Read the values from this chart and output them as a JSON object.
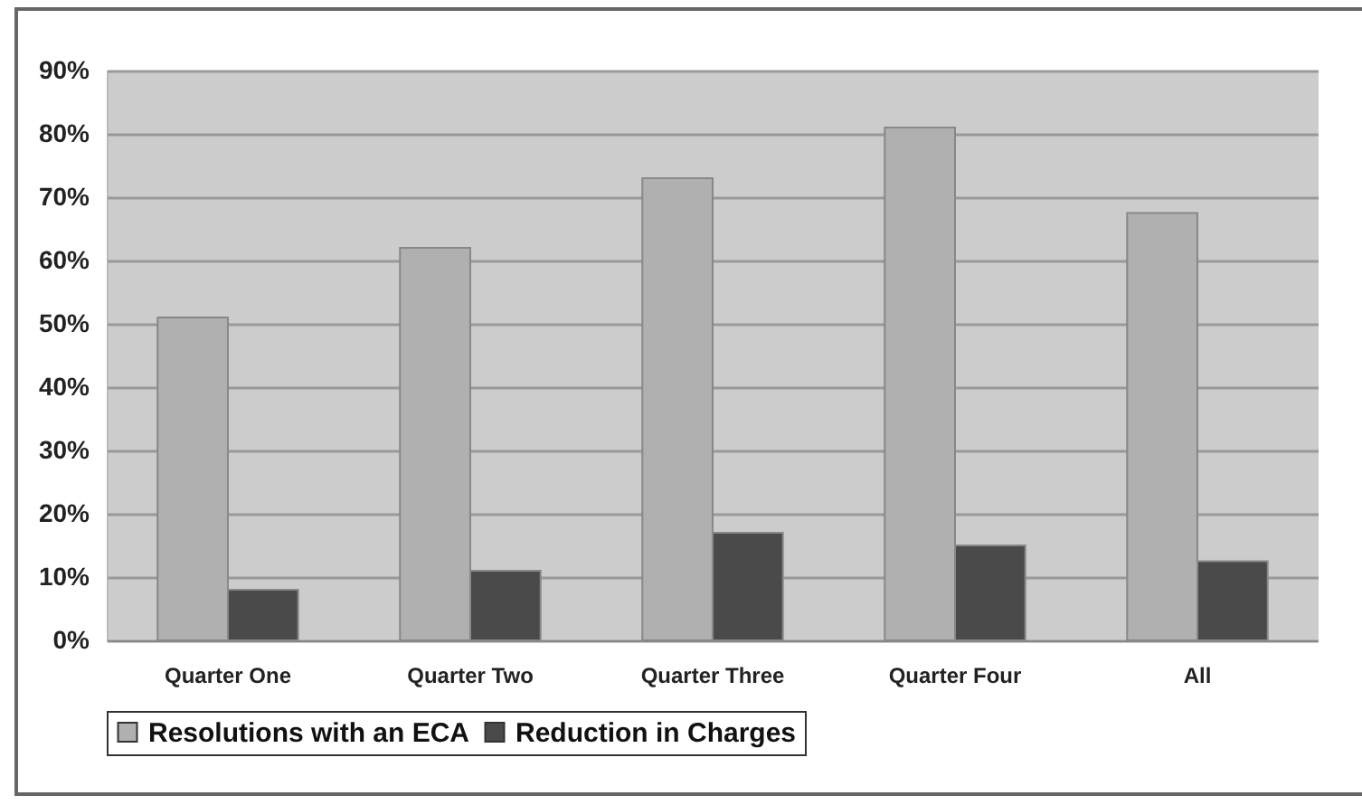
{
  "chart_data": {
    "type": "bar",
    "categories": [
      "Quarter One",
      "Quarter Two",
      "Quarter Three",
      "Quarter Four",
      "All"
    ],
    "series": [
      {
        "name": "Resolutions with an ECA",
        "color": "#b0b0b0",
        "values": [
          51,
          62,
          73,
          81,
          67.5
        ]
      },
      {
        "name": "Reduction in Charges",
        "color": "#4a4a4a",
        "values": [
          8,
          11,
          17,
          15,
          12.5
        ]
      }
    ],
    "ylim": [
      0,
      90
    ],
    "yticks": [
      {
        "value": 0,
        "label": "0%"
      },
      {
        "value": 10,
        "label": "10%"
      },
      {
        "value": 20,
        "label": "20%"
      },
      {
        "value": 30,
        "label": "30%"
      },
      {
        "value": 40,
        "label": "40%"
      },
      {
        "value": 50,
        "label": "50%"
      },
      {
        "value": 60,
        "label": "60%"
      },
      {
        "value": 70,
        "label": "70%"
      },
      {
        "value": 80,
        "label": "80%"
      },
      {
        "value": 90,
        "label": "90%"
      }
    ],
    "grid": "y",
    "legend": "bottom"
  }
}
